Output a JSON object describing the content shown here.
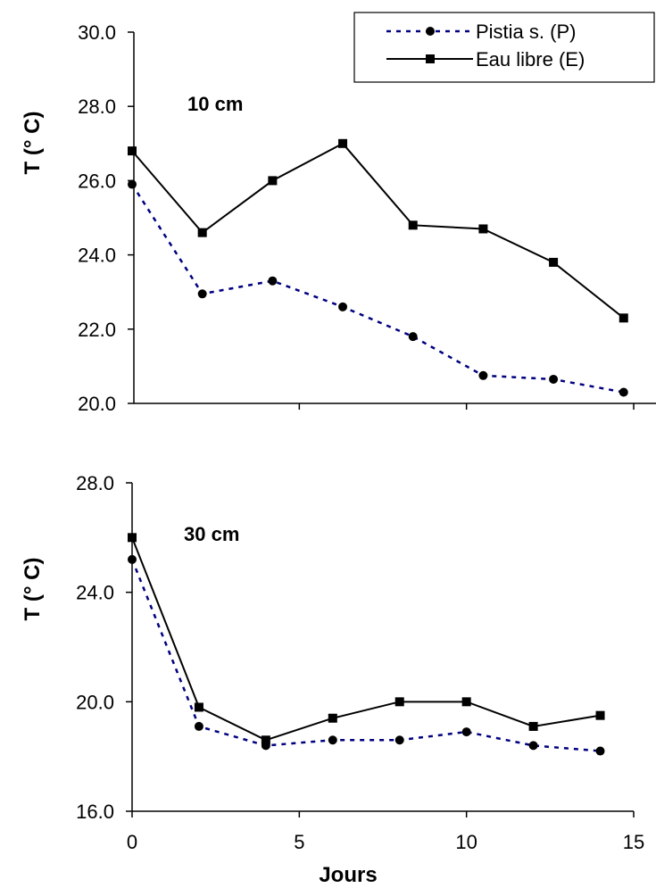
{
  "chart_data": [
    {
      "type": "line",
      "panel_label": "10 cm",
      "ylabel": "T (° C)",
      "xlabel": "",
      "xlim": [
        0,
        15
      ],
      "ylim": [
        20,
        30
      ],
      "yticks": [
        "20.0",
        "22.0",
        "24.0",
        "26.0",
        "28.0",
        "30.0"
      ],
      "ytick_values": [
        20,
        22,
        24,
        26,
        28,
        30
      ],
      "grid": false,
      "legend": "top-right",
      "series": [
        {
          "name": "Pistia s. (P)",
          "style": "dotted",
          "marker": "circle",
          "color": "#000080",
          "marker_color": "#000000",
          "x": [
            0,
            2.1,
            4.2,
            6.3,
            8.4,
            10.5,
            12.6,
            14.7
          ],
          "y": [
            25.9,
            22.95,
            23.3,
            22.6,
            21.8,
            20.75,
            20.65,
            20.3
          ]
        },
        {
          "name": "Eau libre (E)",
          "style": "solid",
          "marker": "square",
          "color": "#000000",
          "marker_color": "#000000",
          "x": [
            0,
            2.1,
            4.2,
            6.3,
            8.4,
            10.5,
            12.6,
            14.7
          ],
          "y": [
            26.8,
            24.6,
            26.0,
            27.0,
            24.8,
            24.7,
            23.8,
            22.3
          ]
        }
      ]
    },
    {
      "type": "line",
      "panel_label": "30 cm",
      "ylabel": "T (° C)",
      "xlabel": "Jours",
      "xlim": [
        0,
        15
      ],
      "ylim": [
        16,
        28
      ],
      "xticks": [
        "0",
        "5",
        "10",
        "15"
      ],
      "xtick_values": [
        0,
        5,
        10,
        15
      ],
      "yticks": [
        "16.0",
        "20.0",
        "24.0",
        "28.0"
      ],
      "ytick_values": [
        16,
        20,
        24,
        28
      ],
      "grid": false,
      "series": [
        {
          "name": "Pistia s. (P)",
          "style": "dotted",
          "marker": "circle",
          "color": "#000080",
          "marker_color": "#000000",
          "x": [
            0,
            2,
            4,
            6,
            8,
            10,
            12,
            14
          ],
          "y": [
            25.2,
            19.1,
            18.4,
            18.6,
            18.6,
            18.9,
            18.4,
            18.2
          ]
        },
        {
          "name": "Eau libre (E)",
          "style": "solid",
          "marker": "square",
          "color": "#000000",
          "marker_color": "#000000",
          "x": [
            0,
            2,
            4,
            6,
            8,
            10,
            12,
            14
          ],
          "y": [
            26.0,
            19.8,
            18.6,
            19.4,
            20.0,
            20.0,
            19.1,
            19.5
          ]
        }
      ]
    }
  ]
}
